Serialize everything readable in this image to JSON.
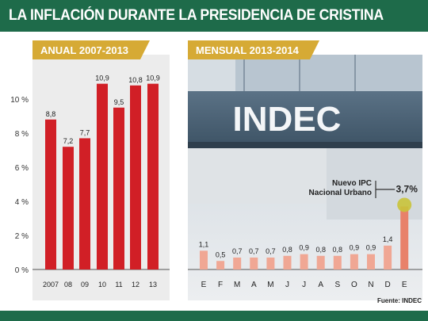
{
  "header": {
    "title": "LA INFLACIÓN DURANTE LA PRESIDENCIA DE CRISTINA"
  },
  "tabs": {
    "annual": "ANUAL 2007-2013",
    "monthly": "MENSUAL 2013-2014"
  },
  "photo": {
    "sign_text": "INDEC"
  },
  "annotation": {
    "line1": "Nuevo IPC",
    "line2": "Nacional Urbano"
  },
  "source": "Fuente: INDEC",
  "colors": {
    "brand_green": "#1e6b4a",
    "tab_gold": "#d6aa35",
    "annual_bar": "#d11f26",
    "monthly_bar": "#f0a794",
    "highlight_bar": "#e8816a",
    "highlight_dot": "#c9c33a"
  },
  "chart_data": [
    {
      "type": "bar",
      "title": "ANUAL 2007-2013",
      "categories": [
        "2007",
        "08",
        "09",
        "10",
        "11",
        "12",
        "13"
      ],
      "values": [
        8.8,
        7.2,
        7.7,
        10.9,
        9.5,
        10.8,
        10.9
      ],
      "value_labels": [
        "8,8",
        "7,2",
        "7,7",
        "10,9",
        "9,5",
        "10,8",
        "10,9"
      ],
      "ylim": [
        0,
        12
      ],
      "yticks": [
        0,
        2,
        4,
        6,
        8,
        10
      ],
      "ytick_labels": [
        "0 %",
        "2 %",
        "4 %",
        "6 %",
        "8 %",
        "10 %"
      ],
      "grid": false
    },
    {
      "type": "bar",
      "title": "MENSUAL 2013-2014",
      "categories": [
        "E",
        "F",
        "M",
        "A",
        "M",
        "J",
        "J",
        "A",
        "S",
        "O",
        "N",
        "D",
        "E"
      ],
      "values": [
        1.1,
        0.5,
        0.7,
        0.7,
        0.7,
        0.8,
        0.9,
        0.8,
        0.8,
        0.9,
        0.9,
        1.4,
        3.7
      ],
      "value_labels": [
        "1,1",
        "0,5",
        "0,7",
        "0,7",
        "0,7",
        "0,8",
        "0,9",
        "0,8",
        "0,8",
        "0,9",
        "0,9",
        "1,4",
        "3,7%"
      ],
      "ylim": [
        0,
        12
      ],
      "highlighted_category_index": 12,
      "grid": false
    }
  ]
}
